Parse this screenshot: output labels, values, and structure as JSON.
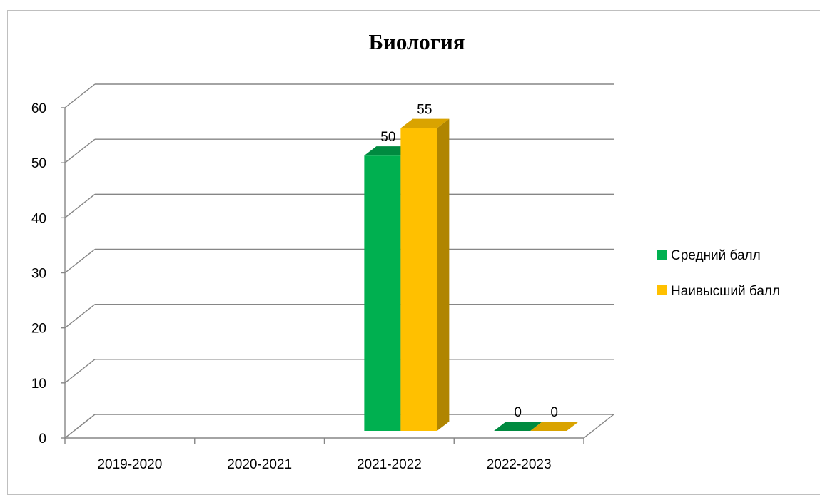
{
  "chart_data": {
    "type": "bar",
    "title": "Биология",
    "xlabel": "",
    "ylabel": "",
    "categories": [
      "2019-2020",
      "2020-2021",
      "2021-2022",
      "2022-2023"
    ],
    "series": [
      {
        "name": "Средний балл",
        "values": [
          null,
          null,
          50,
          0
        ],
        "color": "#00b050",
        "side_color": "#007a3a",
        "top_color": "#008a40"
      },
      {
        "name": "Наивысший балл",
        "values": [
          null,
          null,
          55,
          0
        ],
        "color": "#ffc000",
        "side_color": "#b08500",
        "top_color": "#d9a300"
      }
    ],
    "data_labels": [
      {
        "category": "2021-2022",
        "series": "Средний балл",
        "text": "50"
      },
      {
        "category": "2021-2022",
        "series": "Наивысший балл",
        "text": "55"
      },
      {
        "category": "2022-2023",
        "series": "Средний балл",
        "text": "0"
      },
      {
        "category": "2022-2023",
        "series": "Наивысший балл",
        "text": "0"
      }
    ],
    "ylim": [
      0,
      60
    ],
    "yticks": [
      "0",
      "10",
      "20",
      "30",
      "40",
      "50",
      "60"
    ],
    "grid": true,
    "three_d": true,
    "legend_position": "right"
  }
}
